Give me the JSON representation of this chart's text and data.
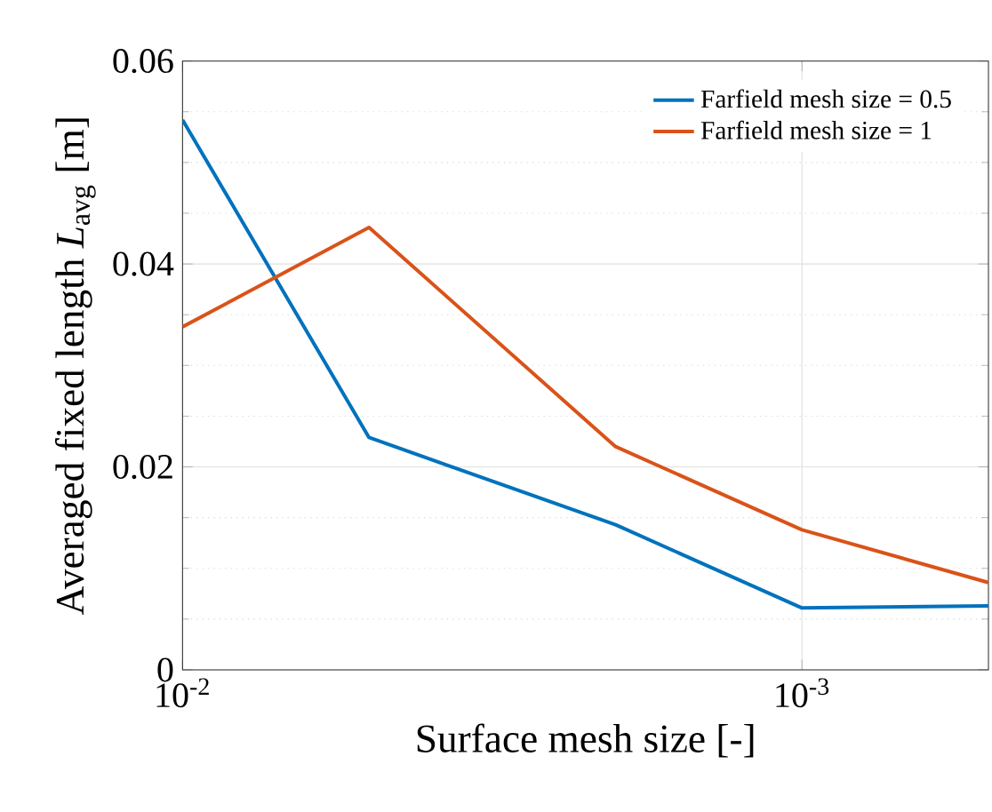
{
  "chart_data": {
    "type": "line",
    "xlabel": "Surface mesh size [-]",
    "ylabel": "Averaged fixed length *L*$_{avg}$ [m]",
    "x": [
      0.01,
      0.005,
      0.002,
      0.001,
      0.0005
    ],
    "series": [
      {
        "name": "Farfield mesh size = 0.5",
        "color": "#0072bd",
        "values": [
          0.0542,
          0.0229,
          0.0143,
          0.0061,
          0.0063
        ]
      },
      {
        "name": "Farfield mesh size = 1",
        "color": "#d95319",
        "values": [
          0.0338,
          0.0436,
          0.022,
          0.0138,
          0.0086
        ]
      }
    ],
    "log": "x",
    "xlim": [
      0.01,
      0.0005
    ],
    "xticks": [
      {
        "value": 0.01,
        "label": "10$^{-2}$"
      },
      {
        "value": 0.001,
        "label": "10$^{-3}$"
      }
    ],
    "ylim": [
      0,
      0.06
    ],
    "yticks": [
      0,
      0.02,
      0.04,
      0.06
    ],
    "grid": true,
    "legend": "top right",
    "marker": "none",
    "line_style": "solid"
  }
}
